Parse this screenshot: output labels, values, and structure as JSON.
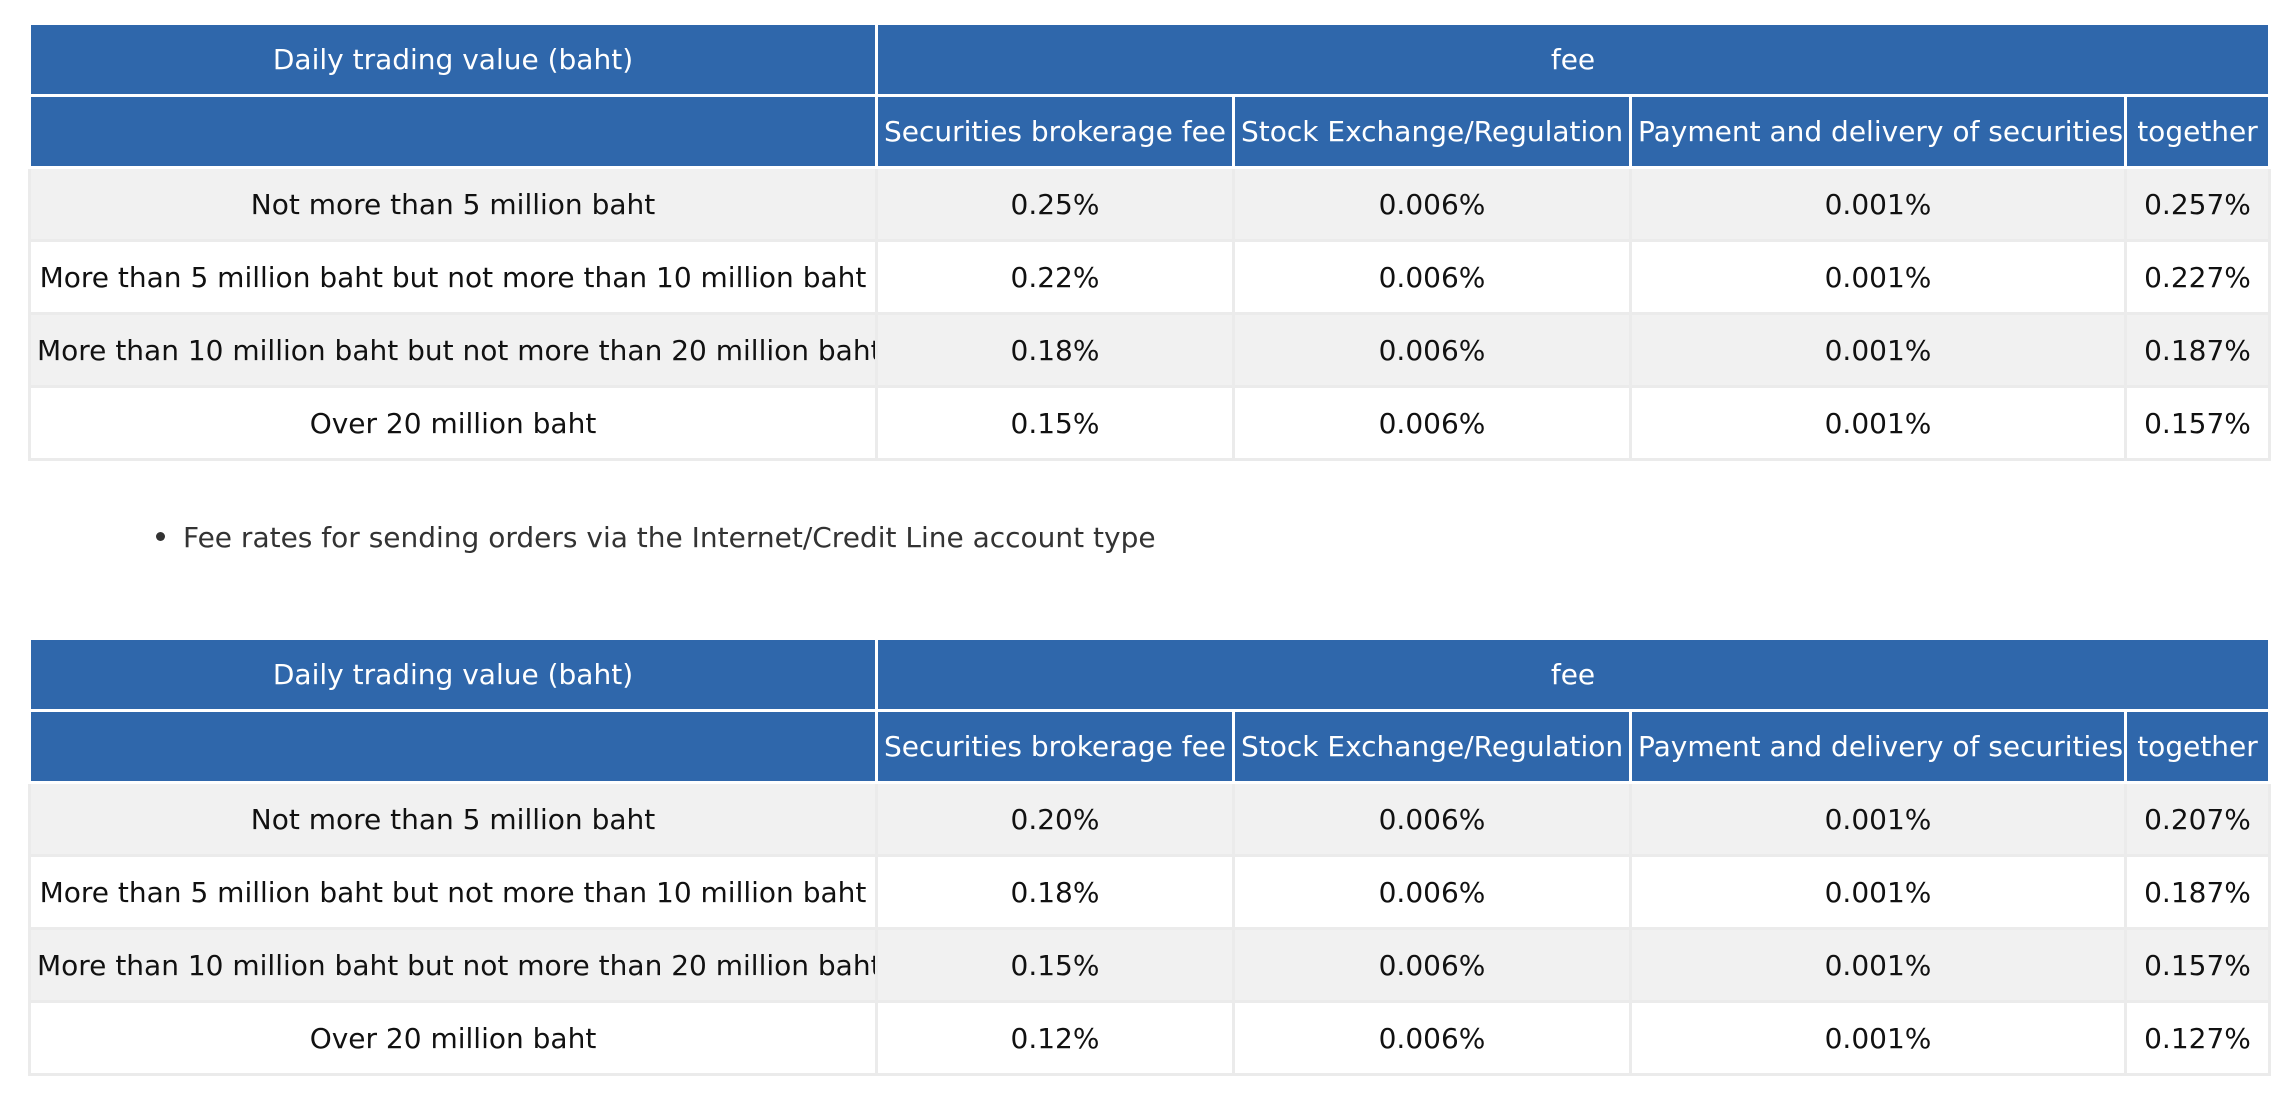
{
  "tables": [
    {
      "headers": {
        "col_range": "Daily trading value (baht)",
        "group": "fee",
        "sub": [
          "Securities brokerage fee",
          "Stock Exchange/Regulation",
          "Payment and delivery of securities",
          "together"
        ]
      },
      "rows": [
        {
          "range": "Not more than 5 million baht",
          "brokerage": "0.25%",
          "exchange": "0.006%",
          "delivery": "0.001%",
          "together": "0.257%"
        },
        {
          "range": "More than 5 million baht but not more than 10 million baht",
          "brokerage": "0.22%",
          "exchange": "0.006%",
          "delivery": "0.001%",
          "together": "0.227%"
        },
        {
          "range": "More than 10 million baht but not more than 20 million baht",
          "brokerage": "0.18%",
          "exchange": "0.006%",
          "delivery": "0.001%",
          "together": "0.187%"
        },
        {
          "range": "Over 20 million baht",
          "brokerage": "0.15%",
          "exchange": "0.006%",
          "delivery": "0.001%",
          "together": "0.157%"
        }
      ]
    },
    {
      "headers": {
        "col_range": "Daily trading value (baht)",
        "group": "fee",
        "sub": [
          "Securities brokerage fee",
          "Stock Exchange/Regulation",
          "Payment and delivery of securities",
          "together"
        ]
      },
      "rows": [
        {
          "range": "Not more than 5 million baht",
          "brokerage": "0.20%",
          "exchange": "0.006%",
          "delivery": "0.001%",
          "together": "0.207%"
        },
        {
          "range": "More than 5 million baht but not more than 10 million baht",
          "brokerage": "0.18%",
          "exchange": "0.006%",
          "delivery": "0.001%",
          "together": "0.187%"
        },
        {
          "range": "More than 10 million baht but not more than 20 million baht",
          "brokerage": "0.15%",
          "exchange": "0.006%",
          "delivery": "0.001%",
          "together": "0.157%"
        },
        {
          "range": "Over 20 million baht",
          "brokerage": "0.12%",
          "exchange": "0.006%",
          "delivery": "0.001%",
          "together": "0.127%"
        }
      ]
    }
  ],
  "note": "Fee rates for sending orders via the Internet/Credit Line account type",
  "colors": {
    "header_bg": "#2f67ab",
    "header_text": "#ffffff",
    "row_stripe": "#f1f1f1",
    "row_plain": "#ffffff",
    "border": "#ebebeb"
  }
}
